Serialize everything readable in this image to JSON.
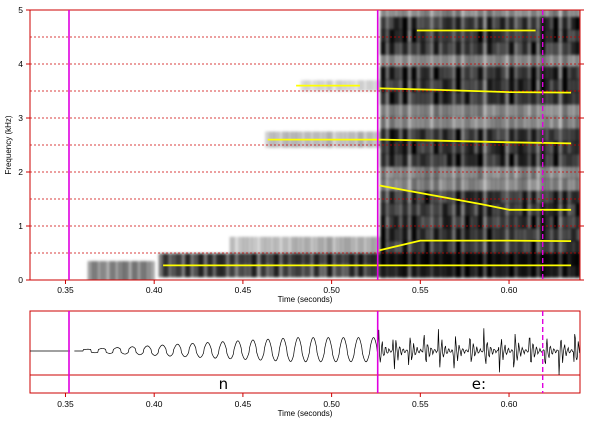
{
  "spectrogram": {
    "ylabel": "Frequency (kHz)",
    "xlabel": "Time (seconds)",
    "y_ticks": [
      "0",
      "1",
      "2",
      "3",
      "4",
      "5"
    ],
    "y_range_khz": [
      0,
      5
    ],
    "x_range_s": [
      0.33,
      0.64
    ],
    "x_ticks": [
      "0.35",
      "0.40",
      "0.45",
      "0.50",
      "0.55",
      "0.60"
    ],
    "grid": "dashed horizontal lines every 0.5 kHz",
    "colors": {
      "frame": "#cc0000",
      "marker": "#e000e0",
      "formant": "#ffff00",
      "grid": "#cc0000"
    }
  },
  "waveform": {
    "xlabel": "Time (seconds)",
    "x_ticks": [
      "0.35",
      "0.40",
      "0.45",
      "0.50",
      "0.55",
      "0.60"
    ]
  },
  "segments": [
    {
      "label": "n",
      "start_s": 0.352,
      "end_s": 0.526
    },
    {
      "label": "e:",
      "start_s": 0.526,
      "end_s": 0.64
    }
  ],
  "markers": {
    "boundaries_s": [
      0.352,
      0.526
    ],
    "dashed_cursor_s": 0.619
  },
  "chart_data": {
    "type": "line",
    "x_unit": "seconds",
    "y_unit": "kHz",
    "xlim": [
      0.33,
      0.64
    ],
    "ylim": [
      0,
      5
    ],
    "series": [
      {
        "x": [
          0.405,
          0.485,
          0.526,
          0.55,
          0.58,
          0.6,
          0.635
        ],
        "y": [
          0.27,
          0.27,
          0.27,
          0.27,
          0.27,
          0.27,
          0.27
        ]
      },
      {
        "x": [
          0.527,
          0.55,
          0.585,
          0.6,
          0.635
        ],
        "y": [
          0.55,
          0.73,
          0.73,
          0.73,
          0.72
        ]
      },
      {
        "x": [
          0.527,
          0.56,
          0.585,
          0.6,
          0.635
        ],
        "y": [
          1.75,
          1.55,
          1.4,
          1.3,
          1.3
        ]
      },
      {
        "x": [
          0.464,
          0.5,
          0.526,
          0.56,
          0.6,
          0.635
        ],
        "y": [
          2.6,
          2.6,
          2.6,
          2.58,
          2.55,
          2.53
        ]
      },
      {
        "x": [
          0.48,
          0.516
        ],
        "y": [
          3.6,
          3.6
        ]
      },
      {
        "x": [
          0.527,
          0.56,
          0.6,
          0.635
        ],
        "y": [
          3.55,
          3.52,
          3.48,
          3.47
        ]
      },
      {
        "x": [
          0.548,
          0.585,
          0.615
        ],
        "y": [
          4.62,
          4.62,
          4.62
        ]
      }
    ]
  }
}
